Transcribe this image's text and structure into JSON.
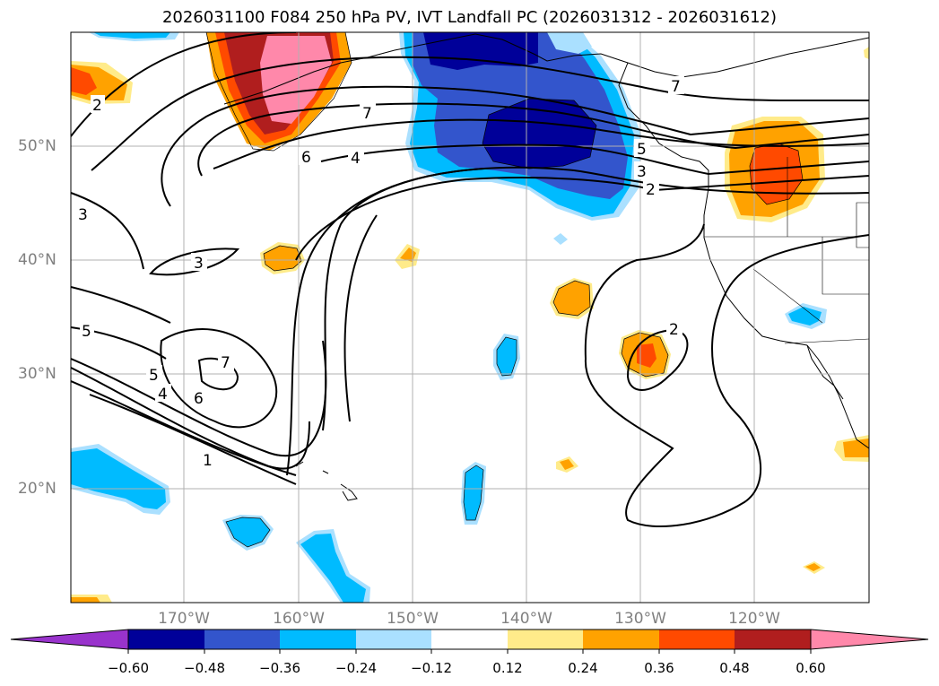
{
  "title": "2026031100 F084 250 hPa PV, IVT Landfall PC (2026031312 - 2026031612)",
  "map": {
    "projection": "equirectangular",
    "lon_range": [
      -180,
      -110
    ],
    "lat_range": [
      10,
      60
    ],
    "lat_labels": [
      "20°N",
      "30°N",
      "40°N",
      "50°N"
    ],
    "lon_labels": [
      "170°W",
      "160°W",
      "150°W",
      "140°W",
      "130°W",
      "120°W"
    ],
    "grid": true,
    "contour_color": "#000000",
    "contour_labels": [
      "7",
      "6",
      "4",
      "3",
      "5",
      "2",
      "1"
    ]
  },
  "colorbar": {
    "colors": [
      "#9933cc",
      "#000099",
      "#3355cc",
      "#00bbff",
      "#aae0ff",
      "#ffffff",
      "#ffeb8a",
      "#ffa200",
      "#ff4a00",
      "#b01e1e",
      "#ff88aa",
      "#ff88aa"
    ],
    "tick_labels": [
      "−0.60",
      "−0.48",
      "−0.36",
      "−0.24",
      "−0.12",
      "0.12",
      "0.24",
      "0.36",
      "0.48",
      "0.60"
    ],
    "extend": "both"
  }
}
